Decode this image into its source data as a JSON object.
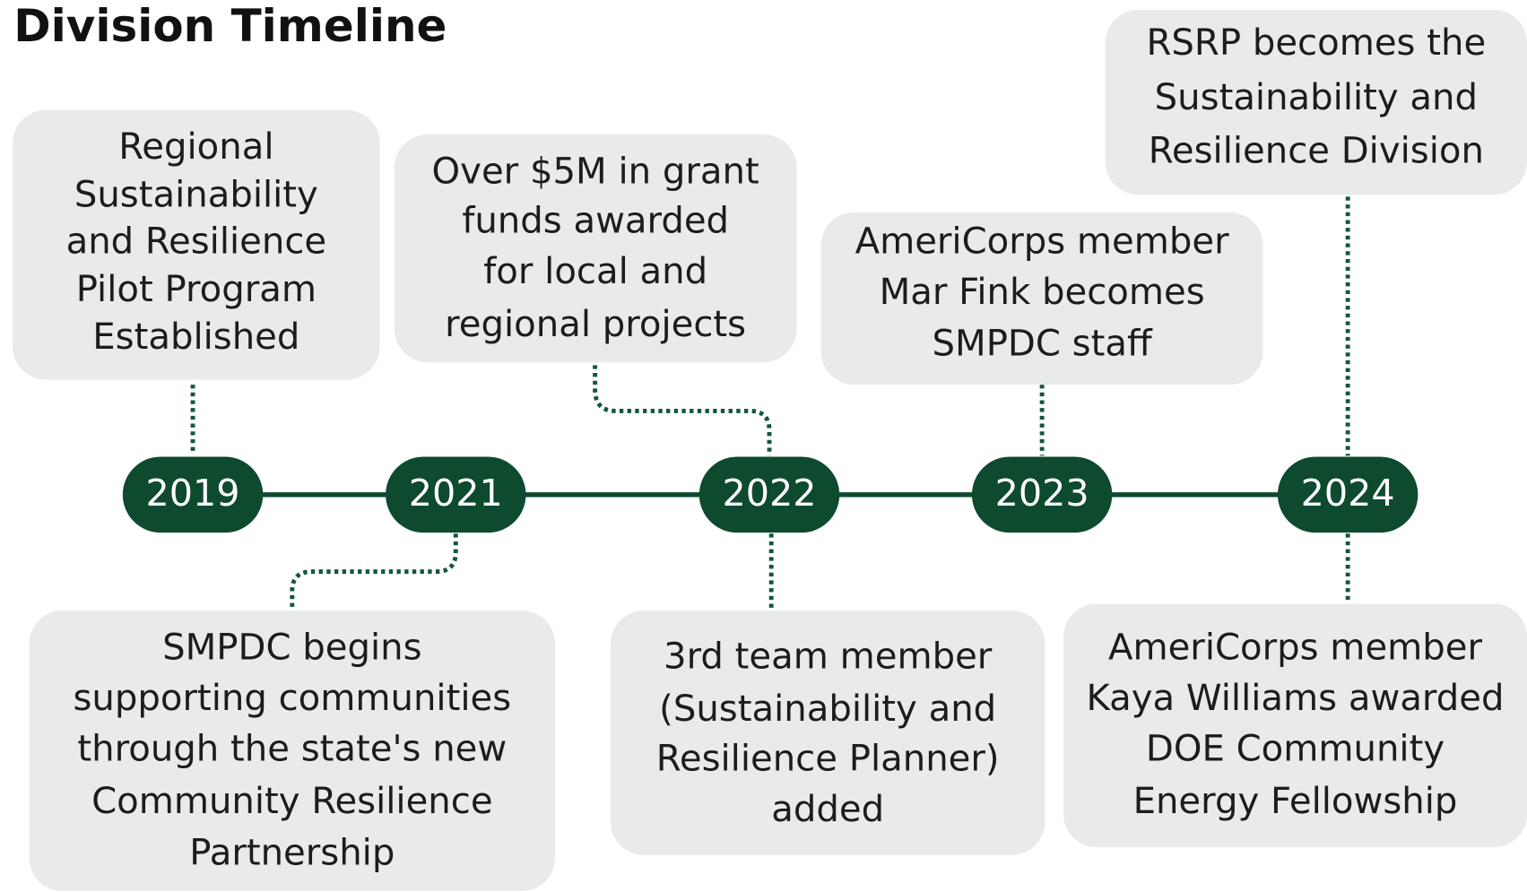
{
  "title": "Division Timeline",
  "years": [
    "2019",
    "2021",
    "2022",
    "2023",
    "2024"
  ],
  "events": [
    {
      "lines": [
        "Regional",
        "Sustainability",
        "and Resilience",
        "Pilot Program",
        "Established"
      ]
    },
    {
      "lines": [
        "Over $5M in grant",
        "funds awarded",
        "for local and",
        "regional projects"
      ]
    },
    {
      "lines": [
        "AmeriCorps member",
        "Mar Fink becomes",
        "SMPDC staff"
      ]
    },
    {
      "lines": [
        "RSRP becomes the",
        "Sustainability and",
        "Resilience Division"
      ]
    },
    {
      "lines": [
        "SMPDC begins",
        "supporting communities",
        "through the state's new",
        "Community Resilience",
        "Partnership"
      ]
    },
    {
      "lines": [
        "3rd team member",
        "(Sustainability and",
        "Resilience Planner)",
        "added"
      ]
    },
    {
      "lines": [
        "AmeriCorps member",
        "Kaya Williams awarded",
        "DOE Community",
        "Energy Fellowship"
      ]
    }
  ]
}
